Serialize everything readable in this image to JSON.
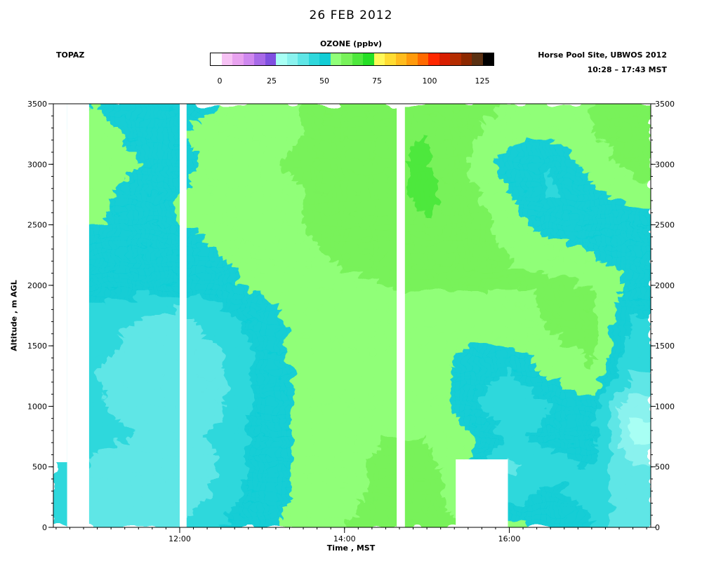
{
  "header": {
    "title": "26 FEB 2012",
    "instrument": "TOPAZ",
    "site": "Horse Pool Site, UBWOS 2012",
    "period": "10:28 – 17:43 MST"
  },
  "colorbar": {
    "label": "OZONE (ppbv)",
    "ticks": [
      "0",
      "25",
      "50",
      "75",
      "100",
      "125"
    ],
    "range": [
      0,
      130
    ],
    "colors": [
      "#ffffff",
      "#f6c2f4",
      "#e8a2ef",
      "#cf88ef",
      "#a86ae8",
      "#7f50e0",
      "#a8fff4",
      "#8af2ee",
      "#5fe6e6",
      "#2fd8dc",
      "#12cdd5",
      "#90ff78",
      "#78f25a",
      "#4ee83c",
      "#25df25",
      "#fff858",
      "#ffdc32",
      "#ffbc1e",
      "#ff9a0c",
      "#ff6a00",
      "#ff2800",
      "#d81e00",
      "#b42c00",
      "#8c2800",
      "#5a3012",
      "#000000"
    ]
  },
  "chart_data": {
    "type": "heatmap",
    "title": "26 FEB 2012",
    "xlabel": "Time , MST",
    "ylabel": "Altitude , m AGL",
    "value_label": "OZONE (ppbv)",
    "xlim": [
      "10:28",
      "17:43"
    ],
    "ylim": [
      0,
      3500
    ],
    "x_ticks": [
      "12:00",
      "14:00",
      "16:00"
    ],
    "y_ticks": [
      "0",
      "500",
      "1000",
      "1500",
      "2000",
      "2500",
      "3000",
      "3500"
    ],
    "value_range": [
      0,
      130
    ],
    "x_hours": [
      10.5,
      11.0,
      11.5,
      12.0,
      12.5,
      13.0,
      13.5,
      14.0,
      14.5,
      15.0,
      15.5,
      16.0,
      16.5,
      17.0,
      17.5
    ],
    "altitude_m": [
      0,
      250,
      500,
      750,
      1000,
      1250,
      1500,
      1750,
      2000,
      2250,
      2500,
      2750,
      3000,
      3250,
      3500
    ],
    "ozone_ppbv": [
      [
        47,
        44,
        43,
        45,
        50,
        54,
        57,
        60,
        62,
        63,
        60,
        56,
        55,
        50,
        40
      ],
      [
        46,
        43,
        42,
        42,
        47,
        53,
        56,
        59,
        61,
        62,
        57,
        48,
        52,
        48,
        42
      ],
      [
        47,
        44,
        43,
        41,
        45,
        52,
        56,
        59,
        61,
        62,
        55,
        44,
        48,
        50,
        40
      ],
      [
        49,
        46,
        45,
        44,
        46,
        53,
        56,
        58,
        60,
        60,
        56,
        49,
        52,
        54,
        33
      ],
      [
        50,
        46,
        43,
        41,
        44,
        52,
        56,
        58,
        60,
        59,
        52,
        45,
        50,
        52,
        36
      ],
      [
        50,
        45,
        42,
        41,
        44,
        52,
        56,
        58,
        59,
        58,
        53,
        49,
        56,
        60,
        45
      ],
      [
        51,
        47,
        43,
        43,
        45,
        52,
        57,
        58,
        58,
        57,
        55,
        55,
        59,
        61,
        48
      ],
      [
        52,
        48,
        45,
        44,
        48,
        53,
        57,
        59,
        58,
        57,
        56,
        57,
        61,
        62,
        50
      ],
      [
        53,
        53,
        52,
        53,
        54,
        56,
        58,
        59,
        60,
        61,
        61,
        60,
        61,
        60,
        54
      ],
      [
        54,
        54,
        53,
        54,
        55,
        57,
        59,
        61,
        62,
        63,
        62,
        60,
        58,
        55,
        52
      ],
      [
        55,
        55,
        54,
        55,
        56,
        58,
        60,
        62,
        63,
        65,
        63,
        58,
        52,
        50,
        50
      ],
      [
        55,
        56,
        54,
        55,
        56,
        58,
        60,
        62,
        64,
        66,
        62,
        55,
        49,
        53,
        58
      ],
      [
        56,
        57,
        55,
        54,
        56,
        59,
        61,
        63,
        64,
        66,
        60,
        52,
        50,
        57,
        62
      ],
      [
        55,
        56,
        54,
        55,
        56,
        58,
        60,
        62,
        64,
        65,
        61,
        57,
        56,
        60,
        62
      ],
      [
        54,
        55,
        53,
        54,
        55,
        57,
        60,
        62,
        63,
        64,
        62,
        60,
        59,
        60,
        61
      ]
    ],
    "data_gaps": [
      {
        "start": "10:28",
        "end": "10:38",
        "altitude_m": [
          550,
          3500
        ]
      },
      {
        "start": "10:38",
        "end": "10:54",
        "altitude_m": [
          0,
          3500
        ]
      },
      {
        "start": "12:00",
        "end": "12:05",
        "altitude_m": [
          0,
          3500
        ]
      },
      {
        "start": "14:38",
        "end": "14:44",
        "altitude_m": [
          0,
          3500
        ]
      },
      {
        "start": "15:21",
        "end": "15:59",
        "altitude_m": [
          0,
          550
        ]
      }
    ]
  }
}
